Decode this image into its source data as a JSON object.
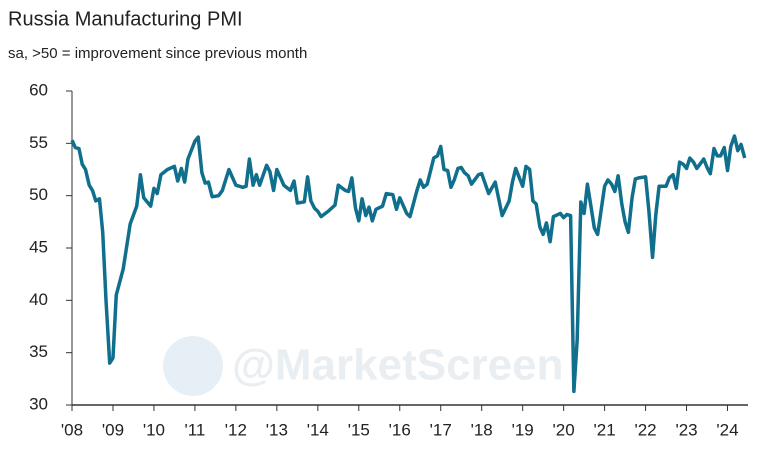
{
  "chart_data": {
    "type": "line",
    "title": "Russia Manufacturing PMI",
    "subtitle": "sa, >50 = improvement since previous month",
    "watermark": "@MarketScreen",
    "x": [
      2008.0,
      2008.08,
      2008.17,
      2008.25,
      2008.33,
      2008.42,
      2008.5,
      2008.58,
      2008.67,
      2008.75,
      2008.83,
      2008.92,
      2009.0,
      2009.08,
      2009.25,
      2009.42,
      2009.58,
      2009.67,
      2009.75,
      2009.92,
      2010.0,
      2010.08,
      2010.17,
      2010.33,
      2010.5,
      2010.58,
      2010.67,
      2010.75,
      2010.83,
      2011.0,
      2011.08,
      2011.17,
      2011.25,
      2011.33,
      2011.42,
      2011.58,
      2011.67,
      2011.83,
      2012.0,
      2012.17,
      2012.25,
      2012.33,
      2012.42,
      2012.5,
      2012.58,
      2012.75,
      2012.83,
      2012.92,
      2013.0,
      2013.17,
      2013.33,
      2013.42,
      2013.5,
      2013.67,
      2013.75,
      2013.83,
      2013.92,
      2014.0,
      2014.08,
      2014.25,
      2014.42,
      2014.5,
      2014.67,
      2014.75,
      2014.83,
      2014.92,
      2015.0,
      2015.08,
      2015.17,
      2015.25,
      2015.33,
      2015.42,
      2015.58,
      2015.67,
      2015.83,
      2015.92,
      2016.0,
      2016.17,
      2016.25,
      2016.42,
      2016.5,
      2016.58,
      2016.67,
      2016.83,
      2016.92,
      2017.0,
      2017.08,
      2017.17,
      2017.25,
      2017.33,
      2017.42,
      2017.5,
      2017.58,
      2017.67,
      2017.75,
      2017.92,
      2018.0,
      2018.17,
      2018.33,
      2018.5,
      2018.67,
      2018.75,
      2018.83,
      2018.92,
      2019.0,
      2019.08,
      2019.17,
      2019.25,
      2019.33,
      2019.42,
      2019.5,
      2019.58,
      2019.67,
      2019.75,
      2019.92,
      2020.0,
      2020.08,
      2020.17,
      2020.25,
      2020.33,
      2020.42,
      2020.5,
      2020.58,
      2020.67,
      2020.75,
      2020.83,
      2021.0,
      2021.08,
      2021.17,
      2021.25,
      2021.33,
      2021.42,
      2021.5,
      2021.58,
      2021.67,
      2021.75,
      2021.83,
      2022.0,
      2022.08,
      2022.17,
      2022.25,
      2022.33,
      2022.5,
      2022.58,
      2022.67,
      2022.75,
      2022.83,
      2022.92,
      2023.0,
      2023.08,
      2023.17,
      2023.25,
      2023.42,
      2023.5,
      2023.58,
      2023.67,
      2023.75,
      2023.83,
      2023.92,
      2024.0,
      2024.08,
      2024.17,
      2024.25,
      2024.33,
      2024.42
    ],
    "values": [
      55.3,
      54.6,
      54.5,
      53,
      52.5,
      51,
      50.5,
      49.5,
      49.7,
      46.5,
      40,
      34,
      34.5,
      40.5,
      43,
      47.3,
      49,
      52,
      49.8,
      49,
      50.7,
      50.2,
      52,
      52.5,
      52.8,
      51.4,
      52.6,
      51.3,
      53.5,
      55.2,
      55.6,
      52.2,
      51.2,
      51.3,
      49.9,
      50,
      50.5,
      52.5,
      51,
      50.8,
      50.9,
      53.5,
      51,
      52,
      51,
      52.9,
      52.3,
      50.5,
      52.5,
      51,
      50.5,
      51.4,
      49.3,
      49.4,
      51.8,
      49.5,
      48.8,
      48.5,
      48,
      48.5,
      49.1,
      51,
      50.5,
      50.4,
      51.7,
      48.8,
      47.6,
      49.7,
      48.1,
      48.9,
      47.6,
      48.7,
      49,
      50.2,
      50.1,
      48.7,
      49.8,
      48.3,
      48,
      50.5,
      51.5,
      50.8,
      51.1,
      53.6,
      53.8,
      54.7,
      52.5,
      52.4,
      50.8,
      51.5,
      52.6,
      52.7,
      52.2,
      51.9,
      51.1,
      52,
      52.1,
      50.2,
      51.3,
      48.1,
      49.5,
      51.3,
      52.6,
      51.7,
      50.9,
      52.8,
      52.5,
      49.5,
      49.2,
      47,
      46.3,
      47.4,
      45.6,
      48,
      48.3,
      47.9,
      48.2,
      48.1,
      31.3,
      36.2,
      49.4,
      48.3,
      51.1,
      48.9,
      46.9,
      46.3,
      50.9,
      51.5,
      51.1,
      50.4,
      51.9,
      49.2,
      47.5,
      46.5,
      49.8,
      51.6,
      51.7,
      51.8,
      48.6,
      44.1,
      48.2,
      50.9,
      50.9,
      51.7,
      52,
      50.7,
      53.2,
      53,
      52.6,
      53.6,
      53.2,
      52.6,
      53.5,
      52.7,
      52.1,
      54.5,
      53.8,
      53.8,
      54.6,
      52.4,
      54.7,
      55.7,
      54.3,
      54.9,
      53.6
    ],
    "color": "#0f6f8c",
    "xlim": [
      2008,
      2024.5
    ],
    "xticks": [
      {
        "value": 2008,
        "label": "'08"
      },
      {
        "value": 2009,
        "label": "'09"
      },
      {
        "value": 2010,
        "label": "'10"
      },
      {
        "value": 2011,
        "label": "'11"
      },
      {
        "value": 2012,
        "label": "'12"
      },
      {
        "value": 2013,
        "label": "'13"
      },
      {
        "value": 2014,
        "label": "'14"
      },
      {
        "value": 2015,
        "label": "'15"
      },
      {
        "value": 2016,
        "label": "'16"
      },
      {
        "value": 2017,
        "label": "'17"
      },
      {
        "value": 2018,
        "label": "'18"
      },
      {
        "value": 2019,
        "label": "'19"
      },
      {
        "value": 2020,
        "label": "'20"
      },
      {
        "value": 2021,
        "label": "'21"
      },
      {
        "value": 2022,
        "label": "'22"
      },
      {
        "value": 2023,
        "label": "'23"
      },
      {
        "value": 2024,
        "label": "'24"
      }
    ],
    "ylim": [
      30,
      60
    ],
    "yticks": [
      30,
      35,
      40,
      45,
      50,
      55,
      60
    ],
    "grid": false
  }
}
